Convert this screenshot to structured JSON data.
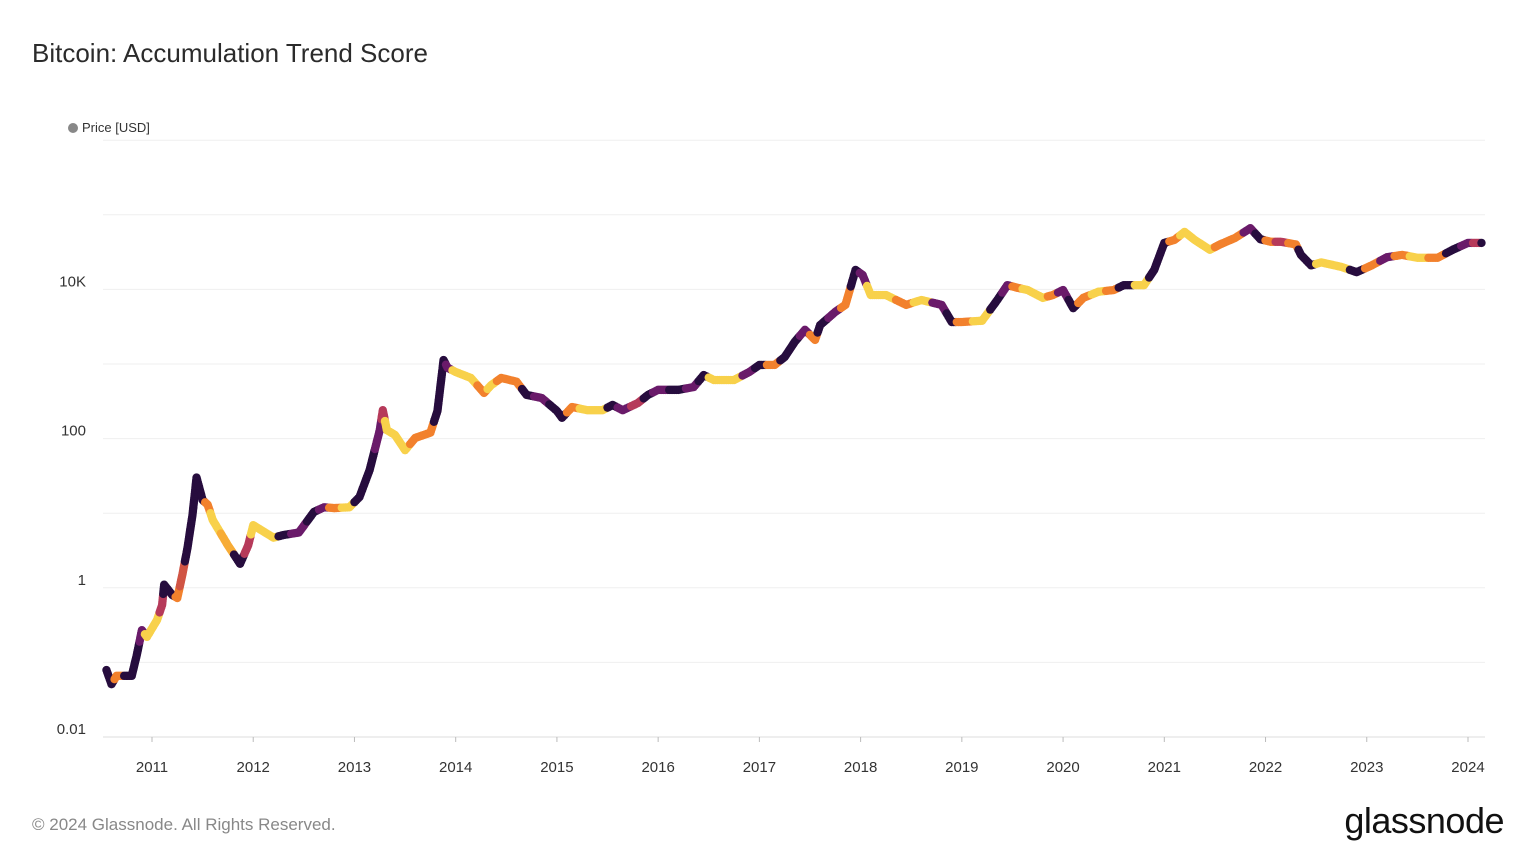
{
  "footer": {
    "copyright": "© 2024 Glassnode. All Rights Reserved.",
    "logo": "glassnode"
  },
  "chart_data": {
    "type": "scatter",
    "title": "Bitcoin: Accumulation Trend Score",
    "legend": {
      "entries": [
        "Price [USD]"
      ],
      "placement": "top-left",
      "marker_color": "#888888"
    },
    "xlabel": "",
    "ylabel": "",
    "y_scale": "log",
    "ylim": [
      0.01,
      1000000
    ],
    "y_gridlines": [
      0.01,
      0.1,
      1,
      10,
      100,
      1000,
      10000,
      100000,
      1000000
    ],
    "y_tick_labels": [
      {
        "value": 0.01,
        "label": "0.01"
      },
      {
        "value": 1,
        "label": "1"
      },
      {
        "value": 100,
        "label": "100"
      },
      {
        "value": 10000,
        "label": "10K"
      }
    ],
    "x_tick_labels": [
      "2011",
      "2012",
      "2013",
      "2014",
      "2015",
      "2016",
      "2017",
      "2018",
      "2019",
      "2020",
      "2021",
      "2022",
      "2023",
      "2024"
    ],
    "xlim": [
      2010.52,
      2024.18
    ],
    "grid": true,
    "color_scale": {
      "name": "Accumulation Trend Score",
      "range": [
        0,
        1
      ],
      "stops": [
        "#1a0a35",
        "#6a1b6a",
        "#b63a5a",
        "#f0742a",
        "#f9c23c",
        "#f6e05a"
      ]
    },
    "series": [
      {
        "columns": [
          "year",
          "price_usd",
          "score"
        ],
        "points": [
          [
            2010.55,
            0.079,
            0.05
          ],
          [
            2010.6,
            0.051,
            0.05
          ],
          [
            2010.65,
            0.066,
            0.75
          ],
          [
            2010.8,
            0.066,
            0.05
          ],
          [
            2010.85,
            0.126,
            0.05
          ],
          [
            2010.9,
            0.27,
            0.3
          ],
          [
            2010.95,
            0.22,
            0.95
          ],
          [
            2011.05,
            0.37,
            0.95
          ],
          [
            2011.1,
            0.59,
            0.5
          ],
          [
            2011.12,
            1.1,
            0.05
          ],
          [
            2011.2,
            0.8,
            0.05
          ],
          [
            2011.25,
            0.73,
            0.75
          ],
          [
            2011.3,
            1.5,
            0.6
          ],
          [
            2011.35,
            3.4,
            0.05
          ],
          [
            2011.4,
            9.5,
            0.05
          ],
          [
            2011.44,
            30,
            0.05
          ],
          [
            2011.5,
            15,
            0.05
          ],
          [
            2011.55,
            13,
            0.75
          ],
          [
            2011.6,
            8.1,
            0.95
          ],
          [
            2011.75,
            3.7,
            0.85
          ],
          [
            2011.87,
            2.1,
            0.05
          ],
          [
            2011.95,
            3.7,
            0.5
          ],
          [
            2012.0,
            6.9,
            0.95
          ],
          [
            2012.2,
            4.7,
            0.95
          ],
          [
            2012.3,
            5.1,
            0.05
          ],
          [
            2012.45,
            5.5,
            0.3
          ],
          [
            2012.6,
            10.4,
            0.05
          ],
          [
            2012.7,
            12,
            0.3
          ],
          [
            2012.8,
            11.7,
            0.75
          ],
          [
            2012.95,
            12,
            0.95
          ],
          [
            2013.05,
            16.5,
            0.05
          ],
          [
            2013.15,
            38,
            0.05
          ],
          [
            2013.25,
            130,
            0.3
          ],
          [
            2013.28,
            240,
            0.5
          ],
          [
            2013.32,
            130,
            0.95
          ],
          [
            2013.4,
            112,
            0.95
          ],
          [
            2013.5,
            70,
            0.95
          ],
          [
            2013.6,
            102,
            0.75
          ],
          [
            2013.75,
            120,
            0.75
          ],
          [
            2013.82,
            235,
            0.05
          ],
          [
            2013.88,
            1130,
            0.05
          ],
          [
            2013.92,
            890,
            0.3
          ],
          [
            2014.0,
            780,
            0.95
          ],
          [
            2014.15,
            650,
            0.95
          ],
          [
            2014.28,
            410,
            0.75
          ],
          [
            2014.35,
            520,
            0.95
          ],
          [
            2014.45,
            650,
            0.75
          ],
          [
            2014.6,
            580,
            0.75
          ],
          [
            2014.7,
            385,
            0.05
          ],
          [
            2014.85,
            350,
            0.3
          ],
          [
            2015.0,
            235,
            0.05
          ],
          [
            2015.05,
            190,
            0.05
          ],
          [
            2015.15,
            265,
            0.75
          ],
          [
            2015.3,
            240,
            0.95
          ],
          [
            2015.45,
            240,
            0.95
          ],
          [
            2015.55,
            282,
            0.05
          ],
          [
            2015.65,
            240,
            0.3
          ],
          [
            2015.8,
            300,
            0.5
          ],
          [
            2015.9,
            385,
            0.05
          ],
          [
            2016.0,
            450,
            0.3
          ],
          [
            2016.2,
            450,
            0.05
          ],
          [
            2016.35,
            490,
            0.3
          ],
          [
            2016.45,
            710,
            0.05
          ],
          [
            2016.55,
            610,
            0.95
          ],
          [
            2016.75,
            610,
            0.95
          ],
          [
            2016.9,
            780,
            0.3
          ],
          [
            2017.0,
            970,
            0.05
          ],
          [
            2017.15,
            970,
            0.75
          ],
          [
            2017.25,
            1240,
            0.05
          ],
          [
            2017.35,
            1990,
            0.05
          ],
          [
            2017.45,
            2870,
            0.3
          ],
          [
            2017.55,
            2100,
            0.75
          ],
          [
            2017.6,
            3320,
            0.05
          ],
          [
            2017.75,
            5000,
            0.3
          ],
          [
            2017.85,
            6200,
            0.75
          ],
          [
            2017.95,
            18200,
            0.05
          ],
          [
            2018.02,
            15600,
            0.3
          ],
          [
            2018.1,
            8400,
            0.95
          ],
          [
            2018.25,
            8400,
            0.95
          ],
          [
            2018.45,
            6200,
            0.75
          ],
          [
            2018.6,
            7200,
            0.95
          ],
          [
            2018.8,
            6200,
            0.3
          ],
          [
            2018.9,
            3650,
            0.05
          ],
          [
            2019.0,
            3650,
            0.75
          ],
          [
            2019.2,
            3800,
            0.95
          ],
          [
            2019.35,
            7200,
            0.05
          ],
          [
            2019.45,
            11400,
            0.3
          ],
          [
            2019.55,
            10500,
            0.75
          ],
          [
            2019.65,
            9800,
            0.95
          ],
          [
            2019.8,
            7700,
            0.95
          ],
          [
            2019.9,
            8400,
            0.75
          ],
          [
            2020.0,
            9800,
            0.3
          ],
          [
            2020.1,
            5600,
            0.05
          ],
          [
            2020.2,
            7700,
            0.75
          ],
          [
            2020.35,
            9300,
            0.95
          ],
          [
            2020.5,
            9800,
            0.75
          ],
          [
            2020.6,
            11400,
            0.05
          ],
          [
            2020.8,
            11400,
            0.95
          ],
          [
            2020.9,
            18200,
            0.05
          ],
          [
            2021.0,
            42000,
            0.05
          ],
          [
            2021.1,
            46000,
            0.75
          ],
          [
            2021.2,
            59000,
            0.95
          ],
          [
            2021.3,
            46000,
            0.95
          ],
          [
            2021.45,
            34000,
            0.95
          ],
          [
            2021.55,
            40000,
            0.75
          ],
          [
            2021.7,
            49000,
            0.75
          ],
          [
            2021.85,
            66000,
            0.3
          ],
          [
            2021.95,
            47000,
            0.05
          ],
          [
            2022.05,
            43500,
            0.75
          ],
          [
            2022.15,
            43500,
            0.5
          ],
          [
            2022.3,
            40000,
            0.75
          ],
          [
            2022.35,
            29000,
            0.05
          ],
          [
            2022.45,
            21000,
            0.05
          ],
          [
            2022.55,
            23000,
            0.95
          ],
          [
            2022.75,
            20000,
            0.95
          ],
          [
            2022.9,
            17000,
            0.05
          ],
          [
            2023.05,
            21000,
            0.75
          ],
          [
            2023.2,
            27000,
            0.3
          ],
          [
            2023.35,
            29000,
            0.75
          ],
          [
            2023.5,
            26500,
            0.95
          ],
          [
            2023.7,
            26500,
            0.75
          ],
          [
            2023.85,
            34000,
            0.05
          ],
          [
            2024.0,
            42000,
            0.3
          ],
          [
            2024.1,
            42000,
            0.5
          ],
          [
            2024.15,
            42000,
            0.05
          ]
        ]
      }
    ]
  }
}
